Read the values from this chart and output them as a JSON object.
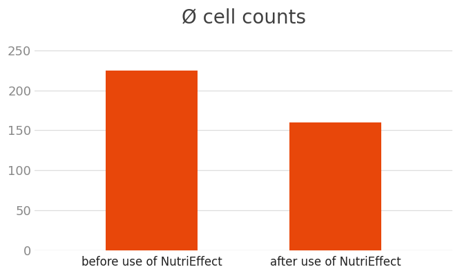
{
  "categories": [
    "before use of NutriEffect",
    "after use of NutriEffect"
  ],
  "values": [
    225,
    160
  ],
  "bar_color": "#E8470A",
  "title": "Ø cell counts",
  "title_fontsize": 20,
  "title_color": "#404040",
  "ylim": [
    0,
    270
  ],
  "yticks": [
    0,
    50,
    100,
    150,
    200,
    250
  ],
  "tick_label_fontsize": 13,
  "ytick_label_color": "#888888",
  "xtick_label_color": "#222222",
  "xlabel_fontsize": 12,
  "background_color": "#ffffff",
  "grid_color": "#dddddd",
  "bar_width": 0.22,
  "x_positions": [
    0.28,
    0.72
  ],
  "xlim": [
    0.0,
    1.0
  ]
}
